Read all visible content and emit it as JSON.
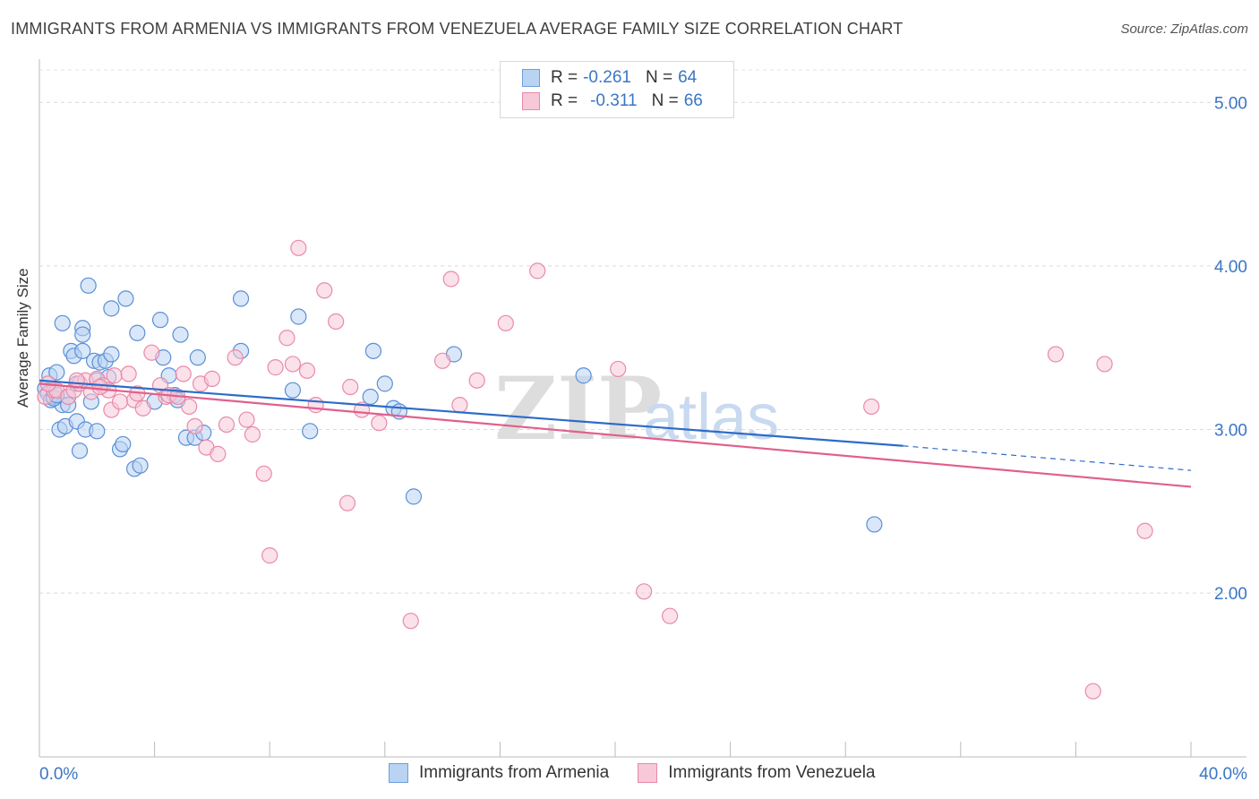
{
  "header": {
    "title": "IMMIGRANTS FROM ARMENIA VS IMMIGRANTS FROM VENEZUELA AVERAGE FAMILY SIZE CORRELATION CHART",
    "source": "Source: ZipAtlas.com"
  },
  "watermark": {
    "zip": "ZIP",
    "atlas": "atlas"
  },
  "legend": {
    "armenia": {
      "r_label": "R = ",
      "r_value": "-0.261",
      "n_label": "N = ",
      "n_value": "64",
      "color": "#6d9fdc",
      "fill": "#b9d3f2"
    },
    "venezuela": {
      "r_label": "R = ",
      "r_value": "-0.311",
      "n_label": "N = ",
      "n_value": "66",
      "color": "#e78aa8",
      "fill": "#f7c8d7"
    }
  },
  "bottom_legend": {
    "armenia": "Immigrants from Armenia",
    "venezuela": "Immigrants from Venezuela"
  },
  "chart_data": {
    "type": "scatter",
    "title": "IMMIGRANTS FROM ARMENIA VS IMMIGRANTS FROM VENEZUELA AVERAGE FAMILY SIZE CORRELATION CHART",
    "xlabel": "",
    "ylabel": "Average Family Size",
    "xlim": [
      0,
      40
    ],
    "ylim": [
      1.0,
      5.15
    ],
    "x_tick_labels": [
      "0.0%",
      "40.0%"
    ],
    "y_ticks": [
      2.0,
      3.0,
      4.0,
      5.0
    ],
    "y_tick_labels": [
      "2.00",
      "3.00",
      "4.00",
      "5.00"
    ],
    "grid": true,
    "series": [
      {
        "name": "Immigrants from Armenia",
        "color": "#5b8fd6",
        "fill": "#b9d3f2",
        "trend_color": "#2d6cc8",
        "trend": {
          "x0": 0,
          "y0": 3.3,
          "x1": 30,
          "y1": 2.9,
          "dash_to_x": 40,
          "dash_to_y": 2.75
        },
        "points": [
          [
            0.2,
            3.25
          ],
          [
            0.3,
            3.22
          ],
          [
            0.35,
            3.33
          ],
          [
            0.4,
            3.18
          ],
          [
            0.5,
            3.2
          ],
          [
            0.6,
            3.35
          ],
          [
            0.7,
            3.0
          ],
          [
            0.8,
            3.15
          ],
          [
            0.8,
            3.65
          ],
          [
            0.9,
            3.02
          ],
          [
            1.0,
            3.2
          ],
          [
            1.0,
            3.15
          ],
          [
            1.1,
            3.48
          ],
          [
            1.2,
            3.45
          ],
          [
            1.3,
            3.05
          ],
          [
            1.3,
            3.28
          ],
          [
            1.4,
            2.87
          ],
          [
            1.5,
            3.48
          ],
          [
            1.5,
            3.62
          ],
          [
            1.5,
            3.58
          ],
          [
            1.6,
            3.0
          ],
          [
            1.7,
            3.88
          ],
          [
            1.8,
            3.17
          ],
          [
            1.9,
            3.42
          ],
          [
            2.0,
            2.99
          ],
          [
            2.0,
            3.3
          ],
          [
            2.1,
            3.41
          ],
          [
            2.3,
            3.42
          ],
          [
            2.4,
            3.32
          ],
          [
            2.5,
            3.74
          ],
          [
            2.5,
            3.46
          ],
          [
            2.8,
            2.88
          ],
          [
            2.9,
            2.91
          ],
          [
            3.3,
            2.76
          ],
          [
            3.4,
            3.59
          ],
          [
            3.5,
            2.78
          ],
          [
            4.0,
            3.17
          ],
          [
            4.2,
            3.67
          ],
          [
            4.3,
            3.44
          ],
          [
            4.5,
            3.33
          ],
          [
            4.7,
            3.21
          ],
          [
            4.8,
            3.18
          ],
          [
            4.9,
            3.58
          ],
          [
            5.1,
            2.95
          ],
          [
            5.4,
            2.95
          ],
          [
            5.5,
            3.44
          ],
          [
            5.7,
            2.98
          ],
          [
            7.0,
            3.48
          ],
          [
            8.8,
            3.24
          ],
          [
            9.0,
            3.69
          ],
          [
            9.4,
            2.99
          ],
          [
            11.5,
            3.2
          ],
          [
            11.6,
            3.48
          ],
          [
            12.0,
            3.28
          ],
          [
            12.3,
            3.13
          ],
          [
            12.5,
            3.11
          ],
          [
            13.0,
            2.59
          ],
          [
            14.4,
            3.46
          ],
          [
            18.9,
            3.33
          ],
          [
            29.0,
            2.42
          ],
          [
            0.5,
            3.19
          ],
          [
            0.6,
            3.21
          ],
          [
            3.0,
            3.8
          ],
          [
            7.0,
            3.8
          ]
        ]
      },
      {
        "name": "Immigrants from Venezuela",
        "color": "#e98aa9",
        "fill": "#f7c8d7",
        "trend_color": "#e0608c",
        "trend": {
          "x0": 0,
          "y0": 3.28,
          "x1": 40,
          "y1": 2.65
        },
        "points": [
          [
            0.2,
            3.2
          ],
          [
            0.5,
            3.24
          ],
          [
            0.6,
            3.24
          ],
          [
            1.0,
            3.2
          ],
          [
            1.2,
            3.24
          ],
          [
            1.4,
            3.28
          ],
          [
            1.6,
            3.3
          ],
          [
            1.8,
            3.23
          ],
          [
            2.0,
            3.31
          ],
          [
            2.2,
            3.27
          ],
          [
            2.4,
            3.24
          ],
          [
            2.5,
            3.12
          ],
          [
            2.6,
            3.33
          ],
          [
            2.8,
            3.17
          ],
          [
            3.1,
            3.34
          ],
          [
            3.3,
            3.18
          ],
          [
            3.4,
            3.22
          ],
          [
            3.6,
            3.13
          ],
          [
            3.9,
            3.47
          ],
          [
            4.2,
            3.27
          ],
          [
            4.4,
            3.2
          ],
          [
            4.5,
            3.21
          ],
          [
            4.8,
            3.2
          ],
          [
            5.0,
            3.34
          ],
          [
            5.2,
            3.14
          ],
          [
            5.4,
            3.02
          ],
          [
            5.6,
            3.28
          ],
          [
            5.8,
            2.89
          ],
          [
            6.0,
            3.31
          ],
          [
            6.2,
            2.85
          ],
          [
            6.5,
            3.03
          ],
          [
            6.8,
            3.44
          ],
          [
            7.2,
            3.06
          ],
          [
            7.4,
            2.97
          ],
          [
            7.8,
            2.73
          ],
          [
            8.0,
            2.23
          ],
          [
            8.2,
            3.38
          ],
          [
            8.6,
            3.56
          ],
          [
            8.8,
            3.4
          ],
          [
            9.0,
            4.11
          ],
          [
            9.3,
            3.36
          ],
          [
            9.6,
            3.15
          ],
          [
            9.9,
            3.85
          ],
          [
            10.3,
            3.66
          ],
          [
            10.7,
            2.55
          ],
          [
            10.8,
            3.26
          ],
          [
            11.2,
            3.12
          ],
          [
            11.8,
            3.04
          ],
          [
            12.9,
            1.83
          ],
          [
            14.0,
            3.42
          ],
          [
            14.3,
            3.92
          ],
          [
            14.6,
            3.15
          ],
          [
            15.2,
            3.3
          ],
          [
            16.2,
            3.65
          ],
          [
            17.3,
            3.97
          ],
          [
            20.1,
            3.37
          ],
          [
            21.0,
            2.01
          ],
          [
            21.9,
            1.86
          ],
          [
            28.9,
            3.14
          ],
          [
            35.3,
            3.46
          ],
          [
            36.6,
            1.4
          ],
          [
            37.0,
            3.4
          ],
          [
            38.4,
            2.38
          ],
          [
            0.3,
            3.28
          ],
          [
            1.3,
            3.3
          ],
          [
            2.1,
            3.26
          ]
        ]
      }
    ]
  }
}
